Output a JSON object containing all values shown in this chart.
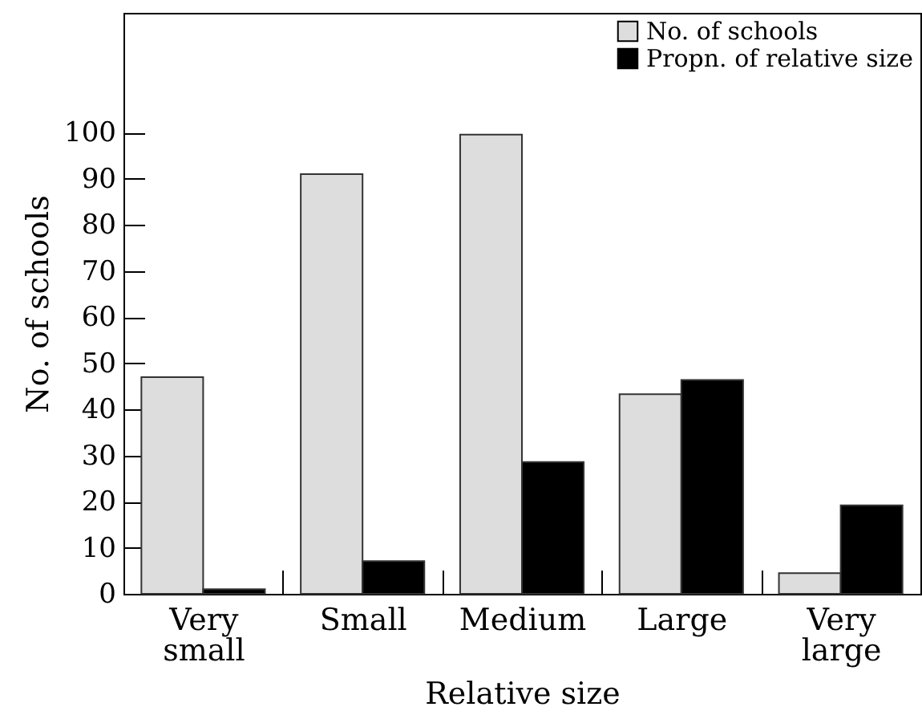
{
  "chart_data": {
    "type": "bar",
    "xlabel": "Relative size",
    "ylabel": "No. of schools",
    "categories": [
      "Very small",
      "Small",
      "Medium",
      "Large",
      "Very large"
    ],
    "series": [
      {
        "name": "No. of schools",
        "color": "#dddddd",
        "values": [
          47,
          91,
          99.6,
          43.3,
          4.5
        ]
      },
      {
        "name": "Propn. of relative size",
        "color": "#000000",
        "values": [
          1,
          7.1,
          28.6,
          46.4,
          19.2
        ]
      }
    ],
    "ylim": [
      0,
      126
    ],
    "yticks": [
      0,
      10,
      20,
      30,
      40,
      50,
      60,
      70,
      80,
      90,
      100
    ],
    "legend": "top right",
    "grid": false
  }
}
